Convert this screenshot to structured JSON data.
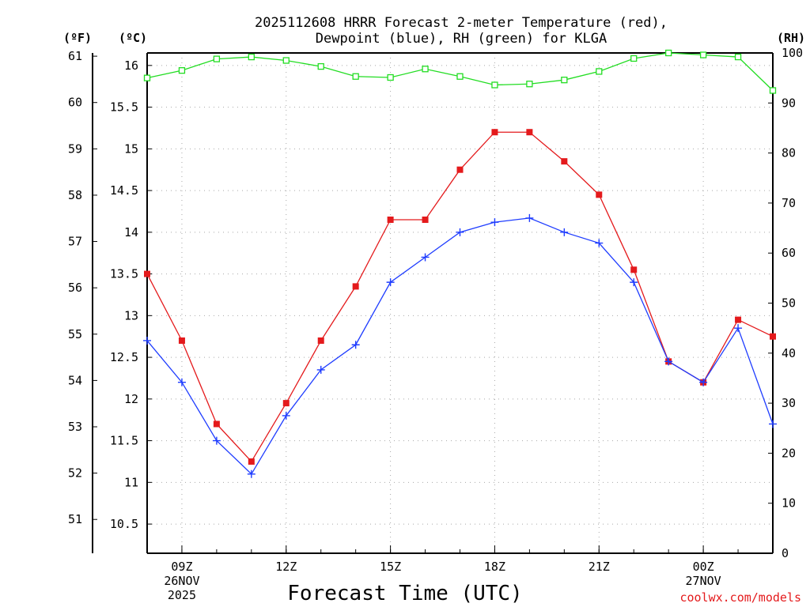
{
  "chart_data": {
    "type": "line",
    "title_line1": "2025112608 HRRR Forecast 2-meter Temperature (red),",
    "title_line2": "Dewpoint (blue), RH (green) for KLGA",
    "xlabel": "Forecast Time (UTC)",
    "credit": "coolwx.com/models",
    "left_axis_f_label": "(ºF)",
    "left_axis_c_label": "(ºC)",
    "right_axis_label": "(RH)",
    "x_hours": [
      8,
      9,
      10,
      11,
      12,
      13,
      14,
      15,
      16,
      17,
      18,
      19,
      20,
      21,
      22,
      23,
      24,
      25,
      26
    ],
    "x_range": [
      8,
      26
    ],
    "x_ticks": [
      {
        "hour": 9,
        "lines": [
          "09Z",
          "26NOV",
          "2025"
        ]
      },
      {
        "hour": 12,
        "lines": [
          "12Z"
        ]
      },
      {
        "hour": 15,
        "lines": [
          "15Z"
        ]
      },
      {
        "hour": 18,
        "lines": [
          "18Z"
        ]
      },
      {
        "hour": 21,
        "lines": [
          "21Z"
        ]
      },
      {
        "hour": 24,
        "lines": [
          "00Z",
          "27NOV"
        ]
      }
    ],
    "celsius_range": [
      10.15,
      16.15
    ],
    "celsius_ticks": [
      "10.5",
      "11",
      "11.5",
      "12",
      "12.5",
      "13",
      "13.5",
      "14",
      "14.5",
      "15",
      "15.5",
      "16"
    ],
    "fahrenheit_ticks": [
      "51",
      "52",
      "53",
      "54",
      "55",
      "56",
      "57",
      "58",
      "59",
      "60",
      "61"
    ],
    "rh_range": [
      0,
      100
    ],
    "rh_ticks": [
      "0",
      "10",
      "20",
      "30",
      "40",
      "50",
      "60",
      "70",
      "80",
      "90",
      "100"
    ],
    "series": [
      {
        "name": "Temperature",
        "color": "#e41a1c",
        "marker": "filled-square",
        "values": [
          13.5,
          12.7,
          11.7,
          11.25,
          11.95,
          12.7,
          13.35,
          14.15,
          14.15,
          14.75,
          15.2,
          15.2,
          14.85,
          14.45,
          13.55,
          12.45,
          12.2,
          12.95,
          12.75
        ]
      },
      {
        "name": "Dewpoint",
        "color": "#1e3cff",
        "marker": "plus",
        "values": [
          12.7,
          12.2,
          11.5,
          11.1,
          11.8,
          12.35,
          12.65,
          13.4,
          13.7,
          14.0,
          14.12,
          14.17,
          14.0,
          13.87,
          13.4,
          12.45,
          12.2,
          12.85,
          11.7
        ]
      },
      {
        "name": "RH",
        "color": "#22dd22",
        "marker": "open-square",
        "axis": "right",
        "values": [
          95,
          96.5,
          98.8,
          99.2,
          98.5,
          97.3,
          95.3,
          95.1,
          96.8,
          95.3,
          93.6,
          93.8,
          94.6,
          96.3,
          98.9,
          100,
          99.6,
          99.2,
          92.5
        ]
      }
    ]
  }
}
